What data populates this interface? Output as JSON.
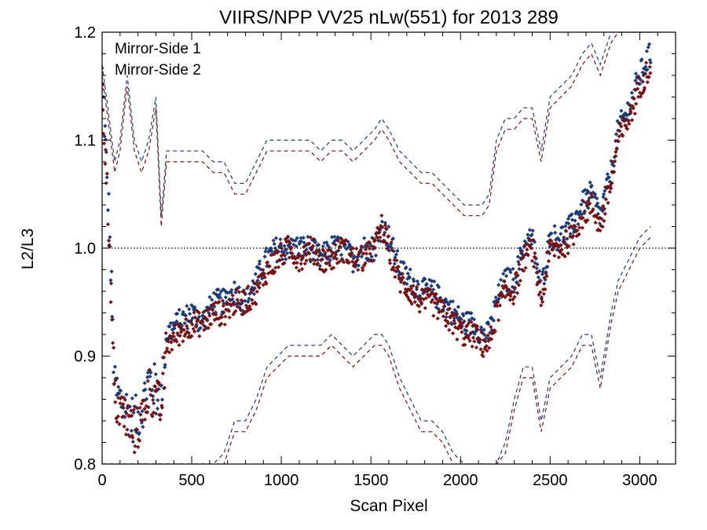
{
  "chart_data": {
    "type": "scatter",
    "title": "VIIRS/NPP VV25 nLw(551) for 2013 289",
    "xlabel": "Scan Pixel",
    "ylabel": "L2/L3",
    "xlim": [
      0,
      3200
    ],
    "ylim": [
      0.8,
      1.2
    ],
    "x_ticks": [
      0,
      500,
      1000,
      1500,
      2000,
      2500,
      3000
    ],
    "x_tick_labels": [
      "0",
      "500",
      "1000",
      "1500",
      "2000",
      "2500",
      "3000"
    ],
    "y_ticks": [
      0.8,
      0.9,
      1.0,
      1.1,
      1.2
    ],
    "y_tick_labels": [
      "0.8",
      "0.9",
      "1.0",
      "1.1",
      "1.2"
    ],
    "reference_line": {
      "y": 1.0,
      "style": "dotted"
    },
    "legend_position": "top-left",
    "series": [
      {
        "name": "Mirror-Side 1",
        "color": "#1a3a7a",
        "x": [
          0,
          40,
          70,
          100,
          140,
          180,
          220,
          260,
          300,
          330,
          360,
          420,
          500,
          560,
          620,
          680,
          740,
          800,
          860,
          920,
          980,
          1040,
          1100,
          1160,
          1220,
          1280,
          1340,
          1400,
          1460,
          1520,
          1560,
          1600,
          1660,
          1720,
          1780,
          1840,
          1900,
          1960,
          2020,
          2080,
          2120,
          2160,
          2200,
          2250,
          2300,
          2350,
          2400,
          2450,
          2500,
          2560,
          2620,
          2680,
          2730,
          2780,
          2840,
          2880,
          2940,
          3000,
          3060
        ],
        "mean": [
          1.16,
          1.02,
          0.87,
          0.86,
          0.85,
          0.84,
          0.85,
          0.88,
          0.87,
          0.86,
          0.92,
          0.93,
          0.94,
          0.93,
          0.95,
          0.95,
          0.96,
          0.95,
          0.97,
          0.99,
          1.0,
          1.0,
          1.0,
          1.0,
          0.99,
          1.0,
          1.0,
          0.99,
          1.0,
          1.0,
          1.02,
          1.01,
          0.98,
          0.97,
          0.96,
          0.96,
          0.95,
          0.94,
          0.93,
          0.93,
          0.92,
          0.92,
          0.95,
          0.97,
          0.97,
          1.0,
          1.01,
          0.96,
          1.01,
          1.01,
          1.02,
          1.04,
          1.05,
          1.03,
          1.07,
          1.11,
          1.13,
          1.16,
          1.18
        ],
        "upper": [
          1.17,
          1.12,
          1.08,
          1.1,
          1.16,
          1.1,
          1.08,
          1.1,
          1.14,
          1.03,
          1.09,
          1.09,
          1.09,
          1.09,
          1.08,
          1.08,
          1.06,
          1.06,
          1.08,
          1.1,
          1.1,
          1.1,
          1.1,
          1.1,
          1.09,
          1.1,
          1.1,
          1.09,
          1.1,
          1.11,
          1.12,
          1.11,
          1.09,
          1.08,
          1.07,
          1.07,
          1.06,
          1.05,
          1.04,
          1.04,
          1.04,
          1.05,
          1.1,
          1.12,
          1.12,
          1.13,
          1.13,
          1.09,
          1.14,
          1.15,
          1.16,
          1.18,
          1.19,
          1.17,
          1.2,
          1.2,
          1.2,
          1.2,
          1.2
        ],
        "lower": [
          0.8,
          0.8,
          0.8,
          0.8,
          0.8,
          0.8,
          0.8,
          0.8,
          0.8,
          0.8,
          0.8,
          0.8,
          0.8,
          0.8,
          0.8,
          0.81,
          0.84,
          0.84,
          0.86,
          0.89,
          0.9,
          0.91,
          0.91,
          0.91,
          0.91,
          0.92,
          0.91,
          0.9,
          0.91,
          0.92,
          0.92,
          0.91,
          0.88,
          0.86,
          0.84,
          0.84,
          0.83,
          0.81,
          0.8,
          0.8,
          0.8,
          0.8,
          0.8,
          0.82,
          0.86,
          0.89,
          0.89,
          0.84,
          0.88,
          0.89,
          0.9,
          0.92,
          0.92,
          0.88,
          0.94,
          0.97,
          0.99,
          1.01,
          1.02
        ]
      },
      {
        "name": "Mirror-Side 2",
        "color": "#7a1010",
        "x": [
          0,
          40,
          70,
          100,
          140,
          180,
          220,
          260,
          300,
          330,
          360,
          420,
          500,
          560,
          620,
          680,
          740,
          800,
          860,
          920,
          980,
          1040,
          1100,
          1160,
          1220,
          1280,
          1340,
          1400,
          1460,
          1520,
          1560,
          1600,
          1660,
          1720,
          1780,
          1840,
          1900,
          1960,
          2020,
          2080,
          2120,
          2160,
          2200,
          2250,
          2300,
          2350,
          2400,
          2450,
          2500,
          2560,
          2620,
          2680,
          2730,
          2780,
          2840,
          2880,
          2940,
          3000,
          3060
        ],
        "mean": [
          1.15,
          1.01,
          0.86,
          0.85,
          0.84,
          0.83,
          0.84,
          0.87,
          0.86,
          0.85,
          0.91,
          0.92,
          0.93,
          0.93,
          0.94,
          0.94,
          0.95,
          0.95,
          0.96,
          0.98,
          0.99,
          1.0,
          0.99,
          1.0,
          0.99,
          0.99,
          1.0,
          0.99,
          0.99,
          1.0,
          1.02,
          1.0,
          0.97,
          0.96,
          0.95,
          0.95,
          0.94,
          0.93,
          0.92,
          0.92,
          0.91,
          0.91,
          0.94,
          0.96,
          0.96,
          0.99,
          1.0,
          0.95,
          1.0,
          1.0,
          1.01,
          1.03,
          1.04,
          1.02,
          1.06,
          1.1,
          1.12,
          1.15,
          1.17
        ],
        "upper": [
          1.16,
          1.11,
          1.07,
          1.09,
          1.15,
          1.09,
          1.07,
          1.09,
          1.13,
          1.02,
          1.08,
          1.08,
          1.08,
          1.08,
          1.07,
          1.07,
          1.05,
          1.05,
          1.07,
          1.09,
          1.09,
          1.09,
          1.09,
          1.09,
          1.08,
          1.09,
          1.09,
          1.08,
          1.09,
          1.1,
          1.11,
          1.1,
          1.08,
          1.07,
          1.06,
          1.06,
          1.05,
          1.04,
          1.03,
          1.03,
          1.03,
          1.04,
          1.09,
          1.11,
          1.11,
          1.12,
          1.12,
          1.08,
          1.13,
          1.14,
          1.15,
          1.17,
          1.18,
          1.16,
          1.19,
          1.2,
          1.2,
          1.2,
          1.2
        ],
        "lower": [
          0.8,
          0.8,
          0.8,
          0.8,
          0.8,
          0.8,
          0.8,
          0.8,
          0.8,
          0.8,
          0.8,
          0.8,
          0.8,
          0.8,
          0.8,
          0.8,
          0.83,
          0.83,
          0.85,
          0.88,
          0.89,
          0.9,
          0.9,
          0.9,
          0.9,
          0.91,
          0.9,
          0.89,
          0.9,
          0.91,
          0.91,
          0.9,
          0.87,
          0.85,
          0.83,
          0.83,
          0.82,
          0.8,
          0.8,
          0.8,
          0.8,
          0.8,
          0.8,
          0.81,
          0.85,
          0.88,
          0.88,
          0.83,
          0.87,
          0.88,
          0.89,
          0.91,
          0.91,
          0.87,
          0.93,
          0.96,
          0.98,
          1.0,
          1.01
        ]
      }
    ]
  }
}
